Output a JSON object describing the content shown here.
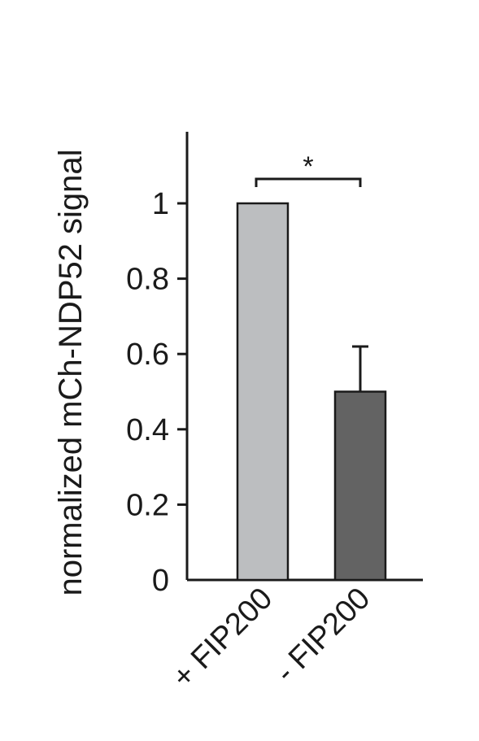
{
  "chart_data": {
    "type": "bar",
    "title": "",
    "xlabel": "",
    "ylabel": "normalized mCh-NDP52 signal",
    "categories": [
      "+ FIP200",
      "- FIP200"
    ],
    "values": [
      1.0,
      0.5
    ],
    "error_upper": [
      0,
      0.12
    ],
    "bar_colors": [
      "#bcbec0",
      "#636363"
    ],
    "ylim": [
      0,
      1.2
    ],
    "yticks": [
      0,
      0.2,
      0.4,
      0.6,
      0.8,
      1
    ],
    "ytick_labels": [
      "0",
      "0.2",
      "0.4",
      "0.6",
      "0.8",
      "1"
    ],
    "grid": false,
    "significance": [
      {
        "between": [
          0,
          1
        ],
        "label": "*"
      }
    ]
  }
}
